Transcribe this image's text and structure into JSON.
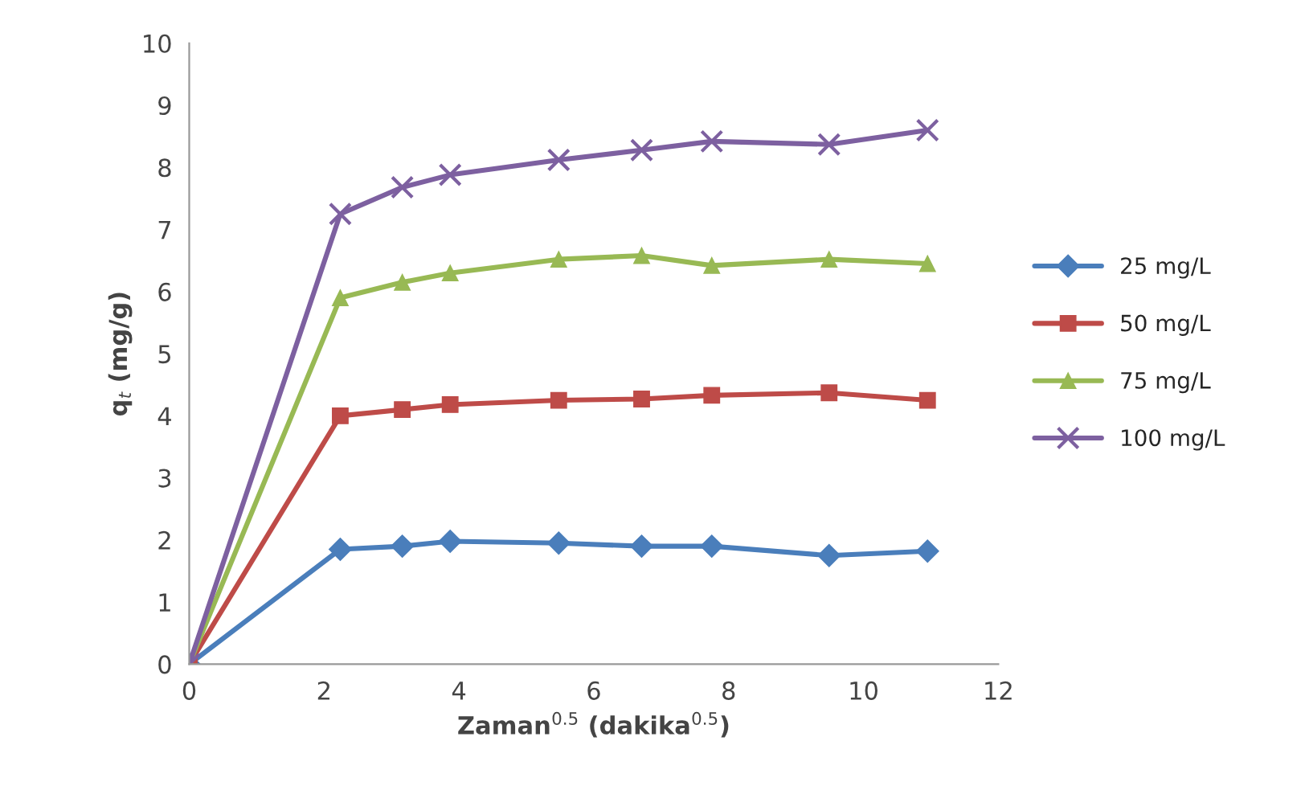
{
  "chart_data": {
    "type": "line",
    "xlabel": "Zaman$^{0.5}$ (dakika$^{0.5}$)",
    "ylabel": "q$_{t}$ (mg/g)",
    "x": [
      0,
      2.24,
      3.16,
      3.87,
      5.48,
      6.71,
      7.75,
      9.49,
      10.95
    ],
    "series": [
      {
        "name": "25 mg/L",
        "color": "#4a7ebb",
        "marker": "diamond",
        "values": [
          0,
          1.85,
          1.9,
          1.98,
          1.95,
          1.9,
          1.9,
          1.75,
          1.82
        ]
      },
      {
        "name": "50 mg/L",
        "color": "#be4b48",
        "marker": "square",
        "values": [
          0,
          4.0,
          4.1,
          4.18,
          4.25,
          4.27,
          4.33,
          4.37,
          4.25
        ]
      },
      {
        "name": "75 mg/L",
        "color": "#98b954",
        "marker": "triangle",
        "values": [
          0,
          5.9,
          6.15,
          6.3,
          6.52,
          6.58,
          6.42,
          6.52,
          6.45
        ]
      },
      {
        "name": "100 mg/L",
        "color": "#7d60a0",
        "marker": "cross",
        "values": [
          0,
          7.25,
          7.68,
          7.88,
          8.12,
          8.28,
          8.42,
          8.37,
          8.6
        ]
      }
    ],
    "xlim": [
      0,
      12
    ],
    "xticks": [
      0,
      2,
      4,
      6,
      8,
      10,
      12
    ],
    "ylim": [
      0,
      10
    ],
    "yticks": [
      0,
      1,
      2,
      3,
      4,
      5,
      6,
      7,
      8,
      9,
      10
    ],
    "grid": false,
    "legend": "right",
    "line_style": "solid"
  }
}
